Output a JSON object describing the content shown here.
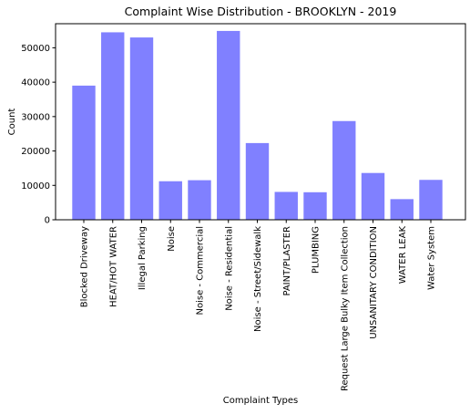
{
  "chart_data": {
    "type": "bar",
    "title": "Complaint Wise Distribution - BROOKLYN - 2019",
    "xlabel": "Complaint Types",
    "ylabel": "Count",
    "ylim": [
      0,
      57000
    ],
    "yticks": [
      0,
      10000,
      20000,
      30000,
      40000,
      50000
    ],
    "grid": false,
    "bar_color": "#8080ff",
    "categories": [
      "Blocked Driveway",
      "HEAT/HOT WATER",
      "Illegal Parking",
      "Noise",
      "Noise - Commercial",
      "Noise - Residential",
      "Noise - Street/Sidewalk",
      "PAINT/PLASTER",
      "PLUMBING",
      "Request Large Bulky Item Collection",
      "UNSANITARY CONDITION",
      "WATER LEAK",
      "Water System"
    ],
    "values": [
      39000,
      54500,
      53000,
      11200,
      11500,
      54900,
      22300,
      8100,
      8000,
      28700,
      13600,
      6000,
      11600
    ]
  }
}
